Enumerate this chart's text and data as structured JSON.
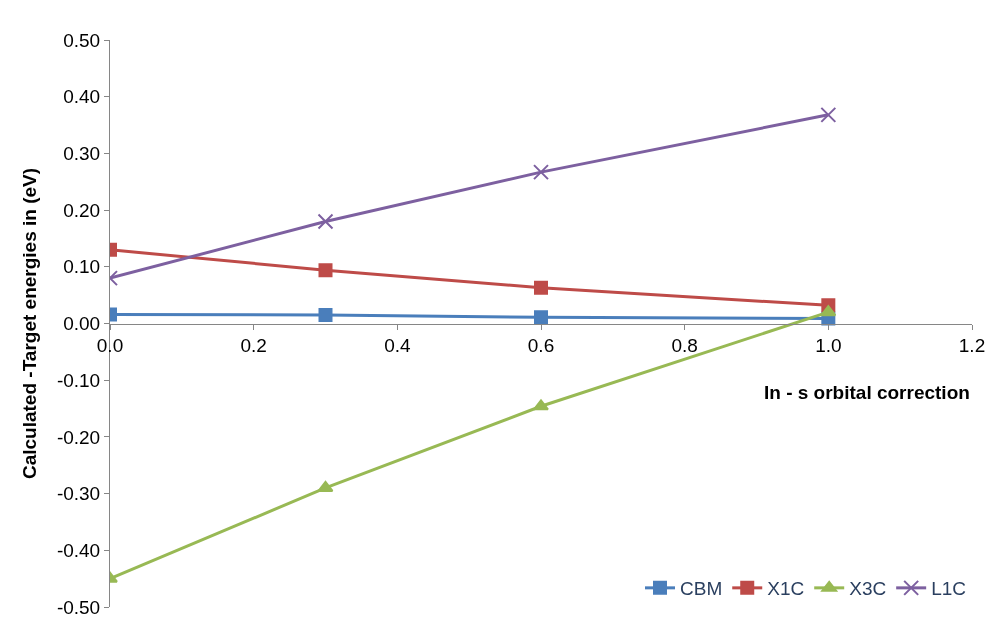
{
  "chart_data": {
    "type": "line",
    "xlabel": "In - s orbital correction",
    "ylabel": "Calculated -Target energies in (eV)",
    "x": [
      0,
      0.3,
      0.6,
      1.0
    ],
    "series": [
      {
        "name": "CBM",
        "color": "#4a7ebb",
        "marker": "square",
        "values": [
          0.016,
          0.015,
          0.011,
          0.009
        ]
      },
      {
        "name": "X1C",
        "color": "#be4b48",
        "marker": "square",
        "values": [
          0.13,
          0.094,
          0.063,
          0.032
        ]
      },
      {
        "name": "X3C",
        "color": "#98b954",
        "marker": "triangle",
        "values": [
          -0.45,
          -0.29,
          -0.146,
          0.02
        ]
      },
      {
        "name": "L1C",
        "color": "#7d60a0",
        "marker": "cross",
        "values": [
          0.08,
          0.18,
          0.267,
          0.368
        ]
      }
    ],
    "xlim": [
      0,
      1.2
    ],
    "xticks": [
      {
        "value": 0,
        "label": "0.0"
      },
      0.2,
      0.4,
      0.6,
      0.8,
      {
        "value": 1.0,
        "label": "1.0"
      },
      1.2
    ],
    "ylim": [
      -0.5,
      0.5
    ],
    "yticks": [
      {
        "value": -0.5,
        "label": "-0.50"
      },
      {
        "value": -0.4,
        "label": "-0.40"
      },
      {
        "value": -0.3,
        "label": "-0.30"
      },
      {
        "value": -0.2,
        "label": "-0.20"
      },
      {
        "value": -0.1,
        "label": "-0.10"
      },
      {
        "value": 0,
        "label": "0.00"
      },
      {
        "value": 0.1,
        "label": "0.10"
      },
      {
        "value": 0.2,
        "label": "0.20"
      },
      {
        "value": 0.3,
        "label": "0.30"
      },
      {
        "value": 0.4,
        "label": "0.40"
      },
      {
        "value": 0.5,
        "label": "0.50"
      }
    ],
    "legend": "bottom right"
  }
}
